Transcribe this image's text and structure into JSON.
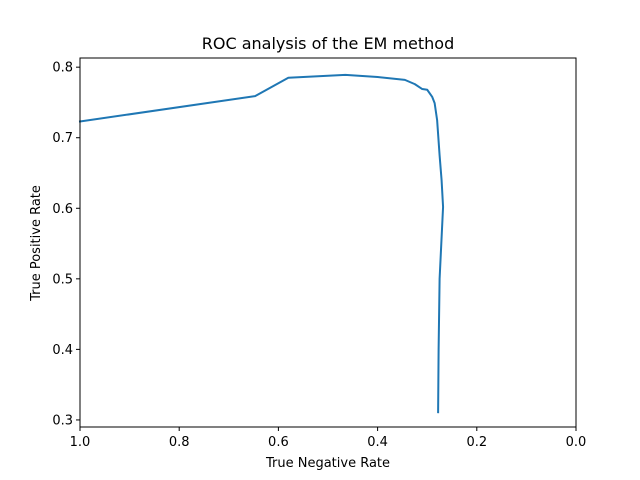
{
  "chart_data": {
    "type": "line",
    "title": "ROC analysis of the EM method",
    "xlabel": "True Negative Rate",
    "ylabel": "True Positive Rate",
    "xlim": [
      1.0,
      0.0
    ],
    "ylim": [
      0.29,
      0.813
    ],
    "x_inverted": true,
    "grid": false,
    "xticks": [
      1.0,
      0.8,
      0.6,
      0.4,
      0.2,
      0.0
    ],
    "xtick_labels": [
      "1.0",
      "0.8",
      "0.6",
      "0.4",
      "0.2",
      "0.0"
    ],
    "yticks": [
      0.3,
      0.4,
      0.5,
      0.6,
      0.7,
      0.8
    ],
    "ytick_labels": [
      "0.3",
      "0.4",
      "0.5",
      "0.6",
      "0.7",
      "0.8"
    ],
    "series": [
      {
        "color": "#1f77b4",
        "x": [
          1.0,
          0.647,
          0.58,
          0.465,
          0.4,
          0.345,
          0.325,
          0.31,
          0.3,
          0.29,
          0.285,
          0.28,
          0.275,
          0.271,
          0.268,
          0.275,
          0.277,
          0.278
        ],
        "y": [
          0.723,
          0.759,
          0.785,
          0.789,
          0.786,
          0.782,
          0.776,
          0.769,
          0.768,
          0.758,
          0.749,
          0.725,
          0.675,
          0.64,
          0.602,
          0.5,
          0.4,
          0.311
        ]
      }
    ]
  }
}
